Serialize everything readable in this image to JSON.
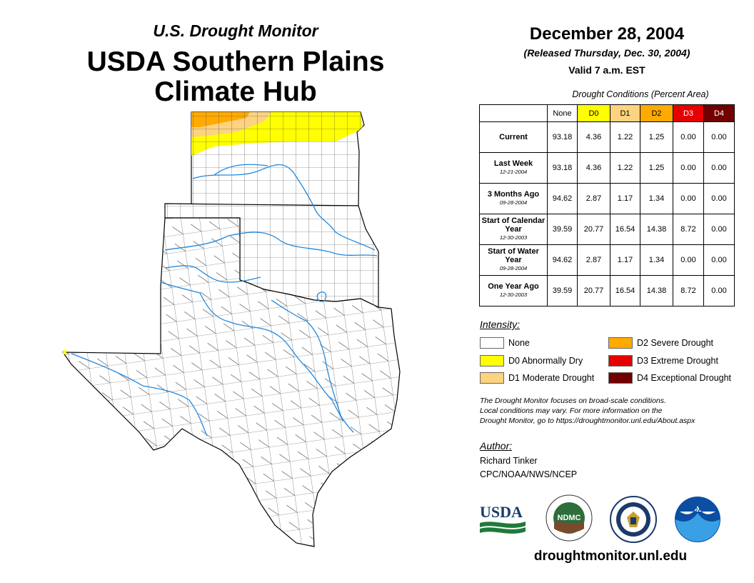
{
  "header": {
    "subtitle": "U.S. Drought Monitor",
    "title_line1": "USDA Southern Plains",
    "title_line2": "Climate Hub"
  },
  "info": {
    "date": "December 28, 2004",
    "released": "(Released Thursday, Dec. 30, 2004)",
    "valid": "Valid 7 a.m. EST"
  },
  "table": {
    "caption": "Drought Conditions (Percent Area)",
    "columns": [
      "None",
      "D0",
      "D1",
      "D2",
      "D3",
      "D4"
    ],
    "column_colors": [
      "#ffffff",
      "#ffff00",
      "#fcd37f",
      "#ffaa00",
      "#e60000",
      "#730000"
    ],
    "rows": [
      {
        "label": "Current",
        "date": "",
        "values": [
          "93.18",
          "4.36",
          "1.22",
          "1.25",
          "0.00",
          "0.00"
        ]
      },
      {
        "label": "Last Week",
        "date": "12-21-2004",
        "values": [
          "93.18",
          "4.36",
          "1.22",
          "1.25",
          "0.00",
          "0.00"
        ]
      },
      {
        "label": "3 Months Ago",
        "date": "09-28-2004",
        "values": [
          "94.62",
          "2.87",
          "1.17",
          "1.34",
          "0.00",
          "0.00"
        ]
      },
      {
        "label": "Start of Calendar Year",
        "date": "12-30-2003",
        "values": [
          "39.59",
          "20.77",
          "16.54",
          "14.38",
          "8.72",
          "0.00"
        ]
      },
      {
        "label": "Start of Water Year",
        "date": "09-28-2004",
        "values": [
          "94.62",
          "2.87",
          "1.17",
          "1.34",
          "0.00",
          "0.00"
        ]
      },
      {
        "label": "One Year Ago",
        "date": "12-30-2003",
        "values": [
          "39.59",
          "20.77",
          "16.54",
          "14.38",
          "8.72",
          "0.00"
        ]
      }
    ]
  },
  "legend": {
    "title": "Intensity:",
    "items": [
      {
        "label": "None",
        "color": "#ffffff"
      },
      {
        "label": "D0 Abnormally Dry",
        "color": "#ffff00"
      },
      {
        "label": "D1 Moderate Drought",
        "color": "#fcd37f"
      },
      {
        "label": "D2 Severe Drought",
        "color": "#ffaa00"
      },
      {
        "label": "D3 Extreme Drought",
        "color": "#e60000"
      },
      {
        "label": "D4 Exceptional Drought",
        "color": "#730000"
      }
    ]
  },
  "note": {
    "line1": "The Drought Monitor focuses on broad-scale conditions.",
    "line2": "Local conditions may vary. For more information on the",
    "line3": "Drought Monitor, go to https://droughtmonitor.unl.edu/About.aspx"
  },
  "author": {
    "title": "Author:",
    "name": "Richard Tinker",
    "org": "CPC/NOAA/NWS/NCEP"
  },
  "logos": {
    "usda": "USDA",
    "ndmc": "NDMC",
    "noaa": "NOAA"
  },
  "website": "droughtmonitor.unl.edu"
}
